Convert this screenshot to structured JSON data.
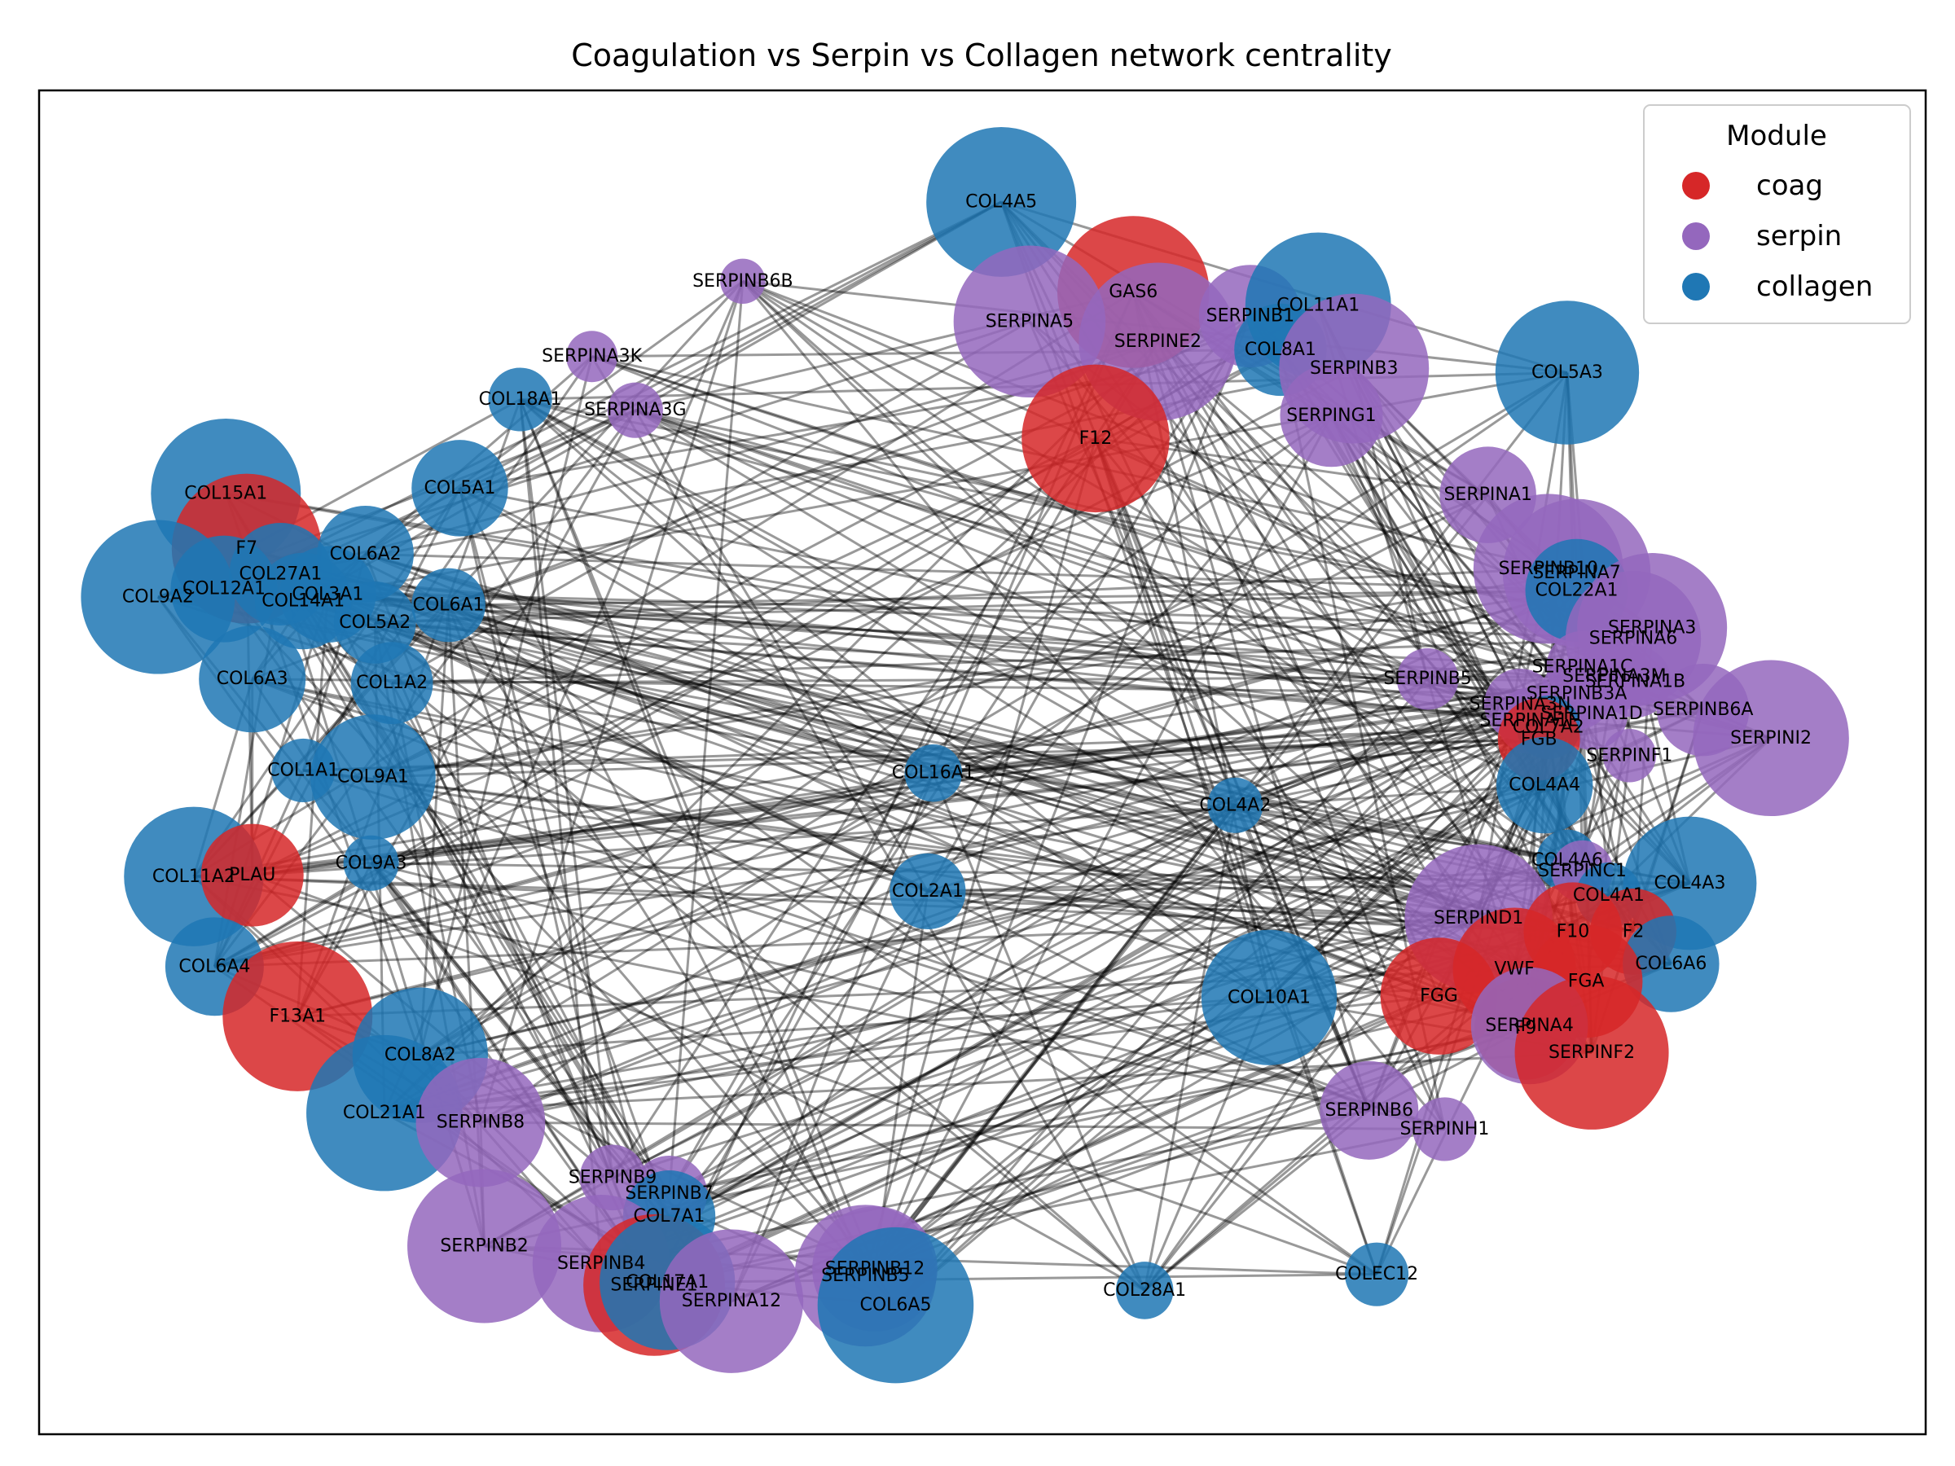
{
  "chart_data": {
    "type": "network",
    "title": "Coagulation vs Serpin vs Collagen network centrality",
    "legend": {
      "title": "Module",
      "position": "top-right",
      "entries": [
        {
          "name": "coag",
          "color": "#d62728"
        },
        {
          "name": "serpin",
          "color": "#9467bd"
        },
        {
          "name": "collagen",
          "color": "#1f77b4"
        }
      ]
    },
    "axes": {
      "ticks_visible": false,
      "grid": false
    },
    "nodes": [
      {
        "id": "COL4A5",
        "module": "collagen",
        "size": 0.73,
        "x": 0.51,
        "y": 0.083
      },
      {
        "id": "GAS6",
        "module": "coag",
        "size": 0.74,
        "x": 0.58,
        "y": 0.15
      },
      {
        "id": "SERPINB6B",
        "module": "serpin",
        "size": 0.22,
        "x": 0.373,
        "y": 0.142
      },
      {
        "id": "SERPINA5",
        "module": "serpin",
        "size": 0.74,
        "x": 0.525,
        "y": 0.172
      },
      {
        "id": "SERPINB1",
        "module": "serpin",
        "size": 0.5,
        "x": 0.642,
        "y": 0.168
      },
      {
        "id": "COL11A1",
        "module": "collagen",
        "size": 0.71,
        "x": 0.678,
        "y": 0.16
      },
      {
        "id": "SERPINE2",
        "module": "serpin",
        "size": 0.77,
        "x": 0.593,
        "y": 0.187
      },
      {
        "id": "COL8A1",
        "module": "collagen",
        "size": 0.45,
        "x": 0.658,
        "y": 0.193
      },
      {
        "id": "SERPINB3",
        "module": "serpin",
        "size": 0.73,
        "x": 0.697,
        "y": 0.207
      },
      {
        "id": "COL5A3",
        "module": "collagen",
        "size": 0.7,
        "x": 0.81,
        "y": 0.21
      },
      {
        "id": "SERPINA3K",
        "module": "serpin",
        "size": 0.25,
        "x": 0.293,
        "y": 0.198
      },
      {
        "id": "SERPINA3G",
        "module": "serpin",
        "size": 0.27,
        "x": 0.316,
        "y": 0.238
      },
      {
        "id": "COL18A1",
        "module": "collagen",
        "size": 0.31,
        "x": 0.255,
        "y": 0.23
      },
      {
        "id": "SERPING1",
        "module": "serpin",
        "size": 0.5,
        "x": 0.685,
        "y": 0.242
      },
      {
        "id": "F12",
        "module": "coag",
        "size": 0.72,
        "x": 0.56,
        "y": 0.259
      },
      {
        "id": "COL5A1",
        "module": "collagen",
        "size": 0.47,
        "x": 0.223,
        "y": 0.296
      },
      {
        "id": "COL15A1",
        "module": "collagen",
        "size": 0.73,
        "x": 0.099,
        "y": 0.3
      },
      {
        "id": "SERPINA1",
        "module": "serpin",
        "size": 0.47,
        "x": 0.768,
        "y": 0.301
      },
      {
        "id": "F7",
        "module": "coag",
        "size": 0.73,
        "x": 0.11,
        "y": 0.341
      },
      {
        "id": "COL6A2",
        "module": "collagen",
        "size": 0.47,
        "x": 0.173,
        "y": 0.345
      },
      {
        "id": "COL27A1",
        "module": "collagen",
        "size": 0.5,
        "x": 0.128,
        "y": 0.36
      },
      {
        "id": "SERPINB10",
        "module": "serpin",
        "size": 0.73,
        "x": 0.8,
        "y": 0.356
      },
      {
        "id": "SERPINA7",
        "module": "serpin",
        "size": 0.72,
        "x": 0.815,
        "y": 0.359
      },
      {
        "id": "COL22A1",
        "module": "collagen",
        "size": 0.5,
        "x": 0.815,
        "y": 0.372
      },
      {
        "id": "COL12A1",
        "module": "collagen",
        "size": 0.52,
        "x": 0.098,
        "y": 0.371
      },
      {
        "id": "COL9A2",
        "module": "collagen",
        "size": 0.75,
        "x": 0.063,
        "y": 0.377
      },
      {
        "id": "COL3A1",
        "module": "collagen",
        "size": 0.47,
        "x": 0.153,
        "y": 0.375
      },
      {
        "id": "COL14A1",
        "module": "collagen",
        "size": 0.47,
        "x": 0.14,
        "y": 0.38
      },
      {
        "id": "COL6A1",
        "module": "collagen",
        "size": 0.36,
        "x": 0.217,
        "y": 0.383
      },
      {
        "id": "COL5A2",
        "module": "collagen",
        "size": 0.4,
        "x": 0.178,
        "y": 0.396
      },
      {
        "id": "SERPINA3",
        "module": "serpin",
        "size": 0.73,
        "x": 0.855,
        "y": 0.4
      },
      {
        "id": "SERPINA6",
        "module": "serpin",
        "size": 0.66,
        "x": 0.845,
        "y": 0.408
      },
      {
        "id": "COL6A3",
        "module": "collagen",
        "size": 0.52,
        "x": 0.113,
        "y": 0.438
      },
      {
        "id": "COL1A2",
        "module": "collagen",
        "size": 0.4,
        "x": 0.187,
        "y": 0.441
      },
      {
        "id": "SERPINB5",
        "module": "serpin",
        "size": 0.3,
        "x": 0.736,
        "y": 0.438
      },
      {
        "id": "SERPINA1C",
        "module": "serpin",
        "size": 0.35,
        "x": 0.818,
        "y": 0.429
      },
      {
        "id": "SERPINA3M",
        "module": "serpin",
        "size": 0.35,
        "x": 0.835,
        "y": 0.436
      },
      {
        "id": "SERPINA1B",
        "module": "serpin",
        "size": 0.35,
        "x": 0.846,
        "y": 0.44
      },
      {
        "id": "SERPINB6A",
        "module": "serpin",
        "size": 0.45,
        "x": 0.882,
        "y": 0.461
      },
      {
        "id": "SERPINB3A",
        "module": "serpin",
        "size": 0.35,
        "x": 0.815,
        "y": 0.449
      },
      {
        "id": "SERPINA3N",
        "module": "serpin",
        "size": 0.35,
        "x": 0.785,
        "y": 0.457
      },
      {
        "id": "SERPINA1D",
        "module": "serpin",
        "size": 0.35,
        "x": 0.823,
        "y": 0.464
      },
      {
        "id": "SERPINA1E",
        "module": "serpin",
        "size": 0.32,
        "x": 0.79,
        "y": 0.469
      },
      {
        "id": "COL7A2",
        "module": "collagen",
        "size": 0.31,
        "x": 0.8,
        "y": 0.474
      },
      {
        "id": "SERPINI2",
        "module": "serpin",
        "size": 0.76,
        "x": 0.918,
        "y": 0.482
      },
      {
        "id": "FGB",
        "module": "coag",
        "size": 0.4,
        "x": 0.795,
        "y": 0.483
      },
      {
        "id": "SERPINF1",
        "module": "serpin",
        "size": 0.26,
        "x": 0.843,
        "y": 0.495
      },
      {
        "id": "COL16A1",
        "module": "collagen",
        "size": 0.28,
        "x": 0.474,
        "y": 0.508
      },
      {
        "id": "COL1A1",
        "module": "collagen",
        "size": 0.31,
        "x": 0.14,
        "y": 0.506
      },
      {
        "id": "COL9A1",
        "module": "collagen",
        "size": 0.61,
        "x": 0.177,
        "y": 0.511
      },
      {
        "id": "COL4A4",
        "module": "collagen",
        "size": 0.47,
        "x": 0.798,
        "y": 0.517
      },
      {
        "id": "COL4A2",
        "module": "collagen",
        "size": 0.27,
        "x": 0.634,
        "y": 0.532
      },
      {
        "id": "COL11A2",
        "module": "collagen",
        "size": 0.68,
        "x": 0.082,
        "y": 0.585
      },
      {
        "id": "PLAU",
        "module": "coag",
        "size": 0.5,
        "x": 0.113,
        "y": 0.584
      },
      {
        "id": "COL9A3",
        "module": "collagen",
        "size": 0.27,
        "x": 0.176,
        "y": 0.575
      },
      {
        "id": "COL4A6",
        "module": "collagen",
        "size": 0.3,
        "x": 0.81,
        "y": 0.573
      },
      {
        "id": "SERPINC1",
        "module": "serpin",
        "size": 0.3,
        "x": 0.818,
        "y": 0.581
      },
      {
        "id": "COL4A3",
        "module": "collagen",
        "size": 0.65,
        "x": 0.875,
        "y": 0.59
      },
      {
        "id": "COL4A1",
        "module": "collagen",
        "size": 0.32,
        "x": 0.832,
        "y": 0.599
      },
      {
        "id": "COL2A1",
        "module": "collagen",
        "size": 0.37,
        "x": 0.471,
        "y": 0.596
      },
      {
        "id": "SERPIND1",
        "module": "serpin",
        "size": 0.72,
        "x": 0.763,
        "y": 0.616
      },
      {
        "id": "F10",
        "module": "coag",
        "size": 0.48,
        "x": 0.813,
        "y": 0.626
      },
      {
        "id": "F2",
        "module": "coag",
        "size": 0.42,
        "x": 0.845,
        "y": 0.626
      },
      {
        "id": "COL6A4",
        "module": "collagen",
        "size": 0.48,
        "x": 0.093,
        "y": 0.652
      },
      {
        "id": "COL6A6",
        "module": "collagen",
        "size": 0.47,
        "x": 0.865,
        "y": 0.65
      },
      {
        "id": "VWF",
        "module": "coag",
        "size": 0.6,
        "x": 0.782,
        "y": 0.654
      },
      {
        "id": "FGA",
        "module": "coag",
        "size": 0.55,
        "x": 0.82,
        "y": 0.663
      },
      {
        "id": "COL10A1",
        "module": "collagen",
        "size": 0.66,
        "x": 0.652,
        "y": 0.675
      },
      {
        "id": "FGG",
        "module": "coag",
        "size": 0.57,
        "x": 0.742,
        "y": 0.674
      },
      {
        "id": "F13A1",
        "module": "coag",
        "size": 0.73,
        "x": 0.137,
        "y": 0.689
      },
      {
        "id": "F9",
        "module": "coag",
        "size": 0.5,
        "x": 0.788,
        "y": 0.698
      },
      {
        "id": "SERPINA4",
        "module": "serpin",
        "size": 0.57,
        "x": 0.79,
        "y": 0.696
      },
      {
        "id": "SERPINF2",
        "module": "coag",
        "size": 0.75,
        "x": 0.823,
        "y": 0.716
      },
      {
        "id": "COL8A2",
        "module": "collagen",
        "size": 0.66,
        "x": 0.202,
        "y": 0.718
      },
      {
        "id": "COL21A1",
        "module": "collagen",
        "size": 0.76,
        "x": 0.183,
        "y": 0.761
      },
      {
        "id": "SERPINB6",
        "module": "serpin",
        "size": 0.48,
        "x": 0.705,
        "y": 0.759
      },
      {
        "id": "SERPINB8",
        "module": "serpin",
        "size": 0.63,
        "x": 0.234,
        "y": 0.768
      },
      {
        "id": "SERPINH1",
        "module": "serpin",
        "size": 0.31,
        "x": 0.745,
        "y": 0.773
      },
      {
        "id": "SERPINB9",
        "module": "serpin",
        "size": 0.32,
        "x": 0.304,
        "y": 0.809
      },
      {
        "id": "SERPINB7",
        "module": "serpin",
        "size": 0.37,
        "x": 0.334,
        "y": 0.821
      },
      {
        "id": "COL7A1",
        "module": "collagen",
        "size": 0.45,
        "x": 0.334,
        "y": 0.838
      },
      {
        "id": "SERPINB2",
        "module": "serpin",
        "size": 0.75,
        "x": 0.236,
        "y": 0.86
      },
      {
        "id": "SERPINB4",
        "module": "serpin",
        "size": 0.67,
        "x": 0.298,
        "y": 0.873
      },
      {
        "id": "SERPINB12",
        "module": "serpin",
        "size": 0.61,
        "x": 0.443,
        "y": 0.877
      },
      {
        "id": "SERPINE1",
        "module": "coag",
        "size": 0.69,
        "x": 0.326,
        "y": 0.889
      },
      {
        "id": "COL17A1",
        "module": "collagen",
        "size": 0.66,
        "x": 0.333,
        "y": 0.887
      },
      {
        "id": "SERPINB5",
        "module": "serpin",
        "size": 0.69,
        "x": 0.438,
        "y": 0.882
      },
      {
        "id": "SERPINA12",
        "module": "serpin",
        "size": 0.7,
        "x": 0.367,
        "y": 0.901
      },
      {
        "id": "COL6A5",
        "module": "collagen",
        "size": 0.76,
        "x": 0.454,
        "y": 0.904
      },
      {
        "id": "COL28A1",
        "module": "collagen",
        "size": 0.28,
        "x": 0.586,
        "y": 0.893
      },
      {
        "id": "COLEC12",
        "module": "collagen",
        "size": 0.31,
        "x": 0.709,
        "y": 0.881
      }
    ]
  }
}
